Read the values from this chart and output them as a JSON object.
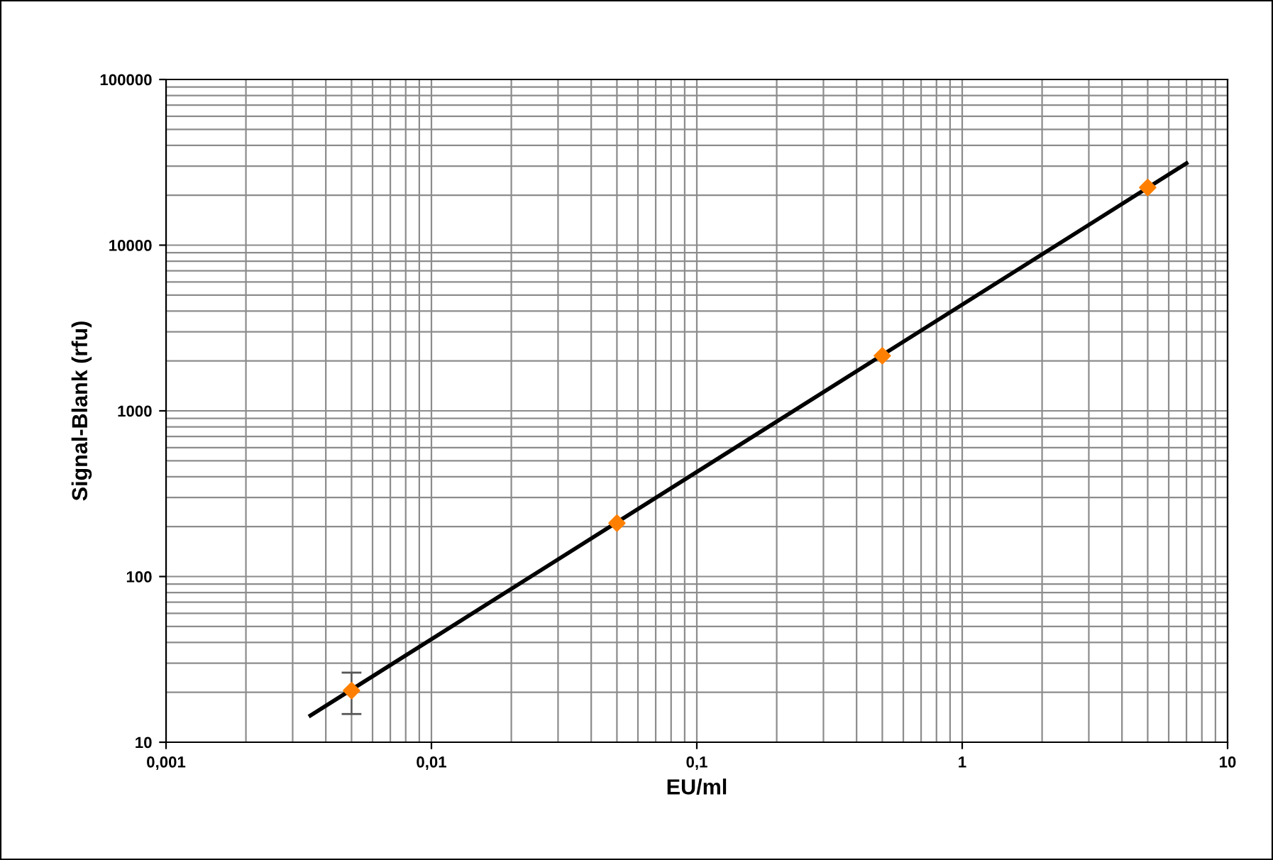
{
  "chart_data": {
    "type": "scatter",
    "xlabel": "EU/ml",
    "ylabel": "Signal-Blank (rfu)",
    "log": "xy",
    "grid": true,
    "xlim": [
      0.001,
      10
    ],
    "ylim": [
      10,
      100000
    ],
    "xticks": [
      {
        "value": 0.001,
        "label": "0,001"
      },
      {
        "value": 0.01,
        "label": "0,01"
      },
      {
        "value": 0.1,
        "label": "0,1"
      },
      1,
      10
    ],
    "yticks": [
      10,
      100,
      1000,
      10000,
      100000
    ],
    "series": [
      {
        "type": "line",
        "marker": "none",
        "color": "#000000",
        "x": [
          0.0035,
          7
        ],
        "values": [
          14.5,
          31200
        ]
      },
      {
        "marker": "diamond",
        "color": "#ff8000",
        "x": [
          0.005,
          0.05,
          0.5,
          5
        ],
        "values": [
          20.5,
          210,
          2150,
          22300
        ],
        "errors": [
          [
            14.8,
            26.3
          ],
          null,
          null,
          null
        ]
      }
    ]
  }
}
